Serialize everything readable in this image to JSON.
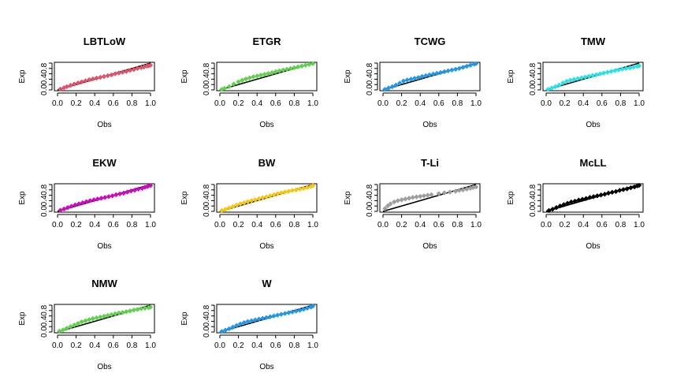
{
  "chart_data": [
    {
      "type": "scatter",
      "title": "LBTLoW",
      "xlabel": "Obs",
      "ylabel": "Exp",
      "xlim": [
        0,
        1
      ],
      "ylim": [
        0,
        1
      ],
      "xticks": [
        "0.0",
        "0.2",
        "0.4",
        "0.6",
        "0.8",
        "1.0"
      ],
      "yticks": [
        "0.0",
        "0.4",
        "0.8"
      ],
      "color": "#DF536B",
      "x": [
        0.03,
        0.07,
        0.1,
        0.14,
        0.18,
        0.22,
        0.26,
        0.3,
        0.34,
        0.38,
        0.42,
        0.46,
        0.5,
        0.54,
        0.58,
        0.62,
        0.66,
        0.7,
        0.74,
        0.78,
        0.82,
        0.86,
        0.9,
        0.93,
        0.96,
        0.98,
        1.0
      ],
      "y": [
        0.03,
        0.08,
        0.12,
        0.17,
        0.22,
        0.26,
        0.3,
        0.34,
        0.38,
        0.41,
        0.44,
        0.47,
        0.5,
        0.53,
        0.56,
        0.6,
        0.63,
        0.66,
        0.69,
        0.73,
        0.76,
        0.8,
        0.83,
        0.86,
        0.89,
        0.9,
        0.92
      ]
    },
    {
      "type": "scatter",
      "title": "ETGR",
      "xlabel": "Obs",
      "ylabel": "Exp",
      "xlim": [
        0,
        1
      ],
      "ylim": [
        0,
        1
      ],
      "xticks": [
        "0.0",
        "0.2",
        "0.4",
        "0.6",
        "0.8",
        "1.0"
      ],
      "yticks": [
        "0.0",
        "0.4",
        "0.8"
      ],
      "color": "#61D04F",
      "x": [
        0.02,
        0.05,
        0.1,
        0.15,
        0.2,
        0.24,
        0.28,
        0.32,
        0.36,
        0.4,
        0.44,
        0.48,
        0.52,
        0.56,
        0.6,
        0.64,
        0.68,
        0.72,
        0.76,
        0.8,
        0.84,
        0.88,
        0.92,
        0.96,
        1.0
      ],
      "y": [
        0.02,
        0.06,
        0.12,
        0.22,
        0.3,
        0.36,
        0.41,
        0.45,
        0.49,
        0.52,
        0.55,
        0.58,
        0.61,
        0.64,
        0.68,
        0.71,
        0.74,
        0.77,
        0.8,
        0.83,
        0.86,
        0.89,
        0.92,
        0.95,
        0.98
      ]
    },
    {
      "type": "scatter",
      "title": "TCWG",
      "xlabel": "Obs",
      "ylabel": "Exp",
      "xlim": [
        0,
        1
      ],
      "ylim": [
        0,
        1
      ],
      "xticks": [
        "0.0",
        "0.2",
        "0.4",
        "0.6",
        "0.8",
        "1.0"
      ],
      "yticks": [
        "0.0",
        "0.4",
        "0.8"
      ],
      "color": "#2297E6",
      "x": [
        0.02,
        0.06,
        0.1,
        0.14,
        0.18,
        0.22,
        0.26,
        0.3,
        0.34,
        0.38,
        0.42,
        0.46,
        0.5,
        0.54,
        0.58,
        0.62,
        0.66,
        0.7,
        0.74,
        0.78,
        0.82,
        0.86,
        0.9,
        0.94,
        0.98,
        1.0
      ],
      "y": [
        0.02,
        0.07,
        0.12,
        0.18,
        0.25,
        0.33,
        0.37,
        0.4,
        0.43,
        0.46,
        0.5,
        0.53,
        0.56,
        0.59,
        0.62,
        0.65,
        0.68,
        0.71,
        0.74,
        0.77,
        0.8,
        0.84,
        0.88,
        0.92,
        0.96,
        0.98
      ]
    },
    {
      "type": "scatter",
      "title": "TMW",
      "xlabel": "Obs",
      "ylabel": "Exp",
      "xlim": [
        0,
        1
      ],
      "ylim": [
        0,
        1
      ],
      "xticks": [
        "0.0",
        "0.2",
        "0.4",
        "0.6",
        "0.8",
        "1.0"
      ],
      "yticks": [
        "0.0",
        "0.4",
        "0.8"
      ],
      "color": "#28E2E5",
      "x": [
        0.02,
        0.06,
        0.1,
        0.14,
        0.18,
        0.22,
        0.26,
        0.3,
        0.34,
        0.38,
        0.42,
        0.46,
        0.5,
        0.54,
        0.58,
        0.62,
        0.66,
        0.7,
        0.74,
        0.78,
        0.82,
        0.86,
        0.9,
        0.94,
        0.98,
        1.0
      ],
      "y": [
        0.02,
        0.07,
        0.12,
        0.18,
        0.26,
        0.32,
        0.36,
        0.39,
        0.42,
        0.45,
        0.48,
        0.51,
        0.54,
        0.57,
        0.6,
        0.63,
        0.66,
        0.69,
        0.72,
        0.75,
        0.78,
        0.8,
        0.82,
        0.85,
        0.88,
        0.9
      ]
    },
    {
      "type": "scatter",
      "title": "EKW",
      "xlabel": "Obs",
      "ylabel": "Exp",
      "xlim": [
        0,
        1
      ],
      "ylim": [
        0,
        1
      ],
      "xticks": [
        "0.0",
        "0.2",
        "0.4",
        "0.6",
        "0.8",
        "1.0"
      ],
      "yticks": [
        "0.0",
        "0.4",
        "0.8"
      ],
      "color": "#CD0BBC",
      "x": [
        0.03,
        0.07,
        0.11,
        0.15,
        0.19,
        0.23,
        0.27,
        0.31,
        0.35,
        0.39,
        0.43,
        0.47,
        0.51,
        0.55,
        0.59,
        0.63,
        0.67,
        0.71,
        0.75,
        0.79,
        0.83,
        0.87,
        0.91,
        0.94,
        0.97,
        1.0
      ],
      "y": [
        0.04,
        0.09,
        0.14,
        0.19,
        0.24,
        0.28,
        0.32,
        0.36,
        0.4,
        0.43,
        0.46,
        0.49,
        0.52,
        0.55,
        0.58,
        0.62,
        0.65,
        0.68,
        0.72,
        0.76,
        0.79,
        0.83,
        0.86,
        0.9,
        0.93,
        0.96
      ]
    },
    {
      "type": "scatter",
      "title": "BW",
      "xlabel": "Obs",
      "ylabel": "Exp",
      "xlim": [
        0,
        1
      ],
      "ylim": [
        0,
        1
      ],
      "xticks": [
        "0.0",
        "0.2",
        "0.4",
        "0.6",
        "0.8",
        "1.0"
      ],
      "yticks": [
        "0.0",
        "0.4",
        "0.8"
      ],
      "color": "#F5C710",
      "x": [
        0.02,
        0.06,
        0.1,
        0.14,
        0.18,
        0.22,
        0.26,
        0.3,
        0.34,
        0.38,
        0.42,
        0.46,
        0.5,
        0.54,
        0.58,
        0.62,
        0.66,
        0.7,
        0.74,
        0.78,
        0.82,
        0.86,
        0.9,
        0.94,
        0.98,
        1.0
      ],
      "y": [
        0.03,
        0.08,
        0.13,
        0.18,
        0.23,
        0.28,
        0.32,
        0.36,
        0.4,
        0.43,
        0.47,
        0.51,
        0.54,
        0.58,
        0.62,
        0.66,
        0.69,
        0.72,
        0.75,
        0.78,
        0.8,
        0.83,
        0.86,
        0.89,
        0.93,
        0.96
      ]
    },
    {
      "type": "scatter",
      "title": "T-Li",
      "xlabel": "Obs",
      "ylabel": "Exp",
      "xlim": [
        0,
        1
      ],
      "ylim": [
        0,
        1
      ],
      "xticks": [
        "0.0",
        "0.2",
        "0.4",
        "0.6",
        "0.8",
        "1.0"
      ],
      "yticks": [
        "0.0",
        "0.4",
        "0.8"
      ],
      "color": "#9E9E9E",
      "x": [
        0.02,
        0.05,
        0.08,
        0.12,
        0.16,
        0.2,
        0.24,
        0.28,
        0.32,
        0.36,
        0.4,
        0.44,
        0.48,
        0.52,
        0.6,
        0.66,
        0.72,
        0.78,
        0.82,
        0.86,
        0.9,
        0.94,
        0.97,
        1.0
      ],
      "y": [
        0.1,
        0.2,
        0.28,
        0.35,
        0.4,
        0.43,
        0.46,
        0.49,
        0.52,
        0.54,
        0.56,
        0.58,
        0.6,
        0.62,
        0.66,
        0.69,
        0.72,
        0.75,
        0.78,
        0.8,
        0.83,
        0.86,
        0.89,
        0.91
      ]
    },
    {
      "type": "scatter",
      "title": "McLL",
      "xlabel": "Obs",
      "ylabel": "Exp",
      "xlim": [
        0,
        1
      ],
      "ylim": [
        0,
        1
      ],
      "xticks": [
        "0.0",
        "0.2",
        "0.4",
        "0.6",
        "0.8",
        "1.0"
      ],
      "yticks": [
        "0.0",
        "0.4",
        "0.8"
      ],
      "color": "#000000",
      "x": [
        0.03,
        0.07,
        0.11,
        0.15,
        0.19,
        0.23,
        0.27,
        0.31,
        0.35,
        0.39,
        0.43,
        0.47,
        0.51,
        0.55,
        0.59,
        0.63,
        0.67,
        0.71,
        0.75,
        0.79,
        0.83,
        0.87,
        0.91,
        0.95,
        0.98,
        1.0
      ],
      "y": [
        0.03,
        0.08,
        0.14,
        0.2,
        0.25,
        0.3,
        0.35,
        0.38,
        0.42,
        0.45,
        0.48,
        0.52,
        0.55,
        0.58,
        0.61,
        0.64,
        0.68,
        0.71,
        0.74,
        0.78,
        0.81,
        0.84,
        0.88,
        0.91,
        0.95,
        0.97
      ]
    },
    {
      "type": "scatter",
      "title": "NMW",
      "xlabel": "Obs",
      "ylabel": "Exp",
      "xlim": [
        0,
        1
      ],
      "ylim": [
        0,
        1
      ],
      "xticks": [
        "0.0",
        "0.2",
        "0.4",
        "0.6",
        "0.8",
        "1.0"
      ],
      "yticks": [
        "0.0",
        "0.4",
        "0.8"
      ],
      "color": "#61D04F",
      "x": [
        0.02,
        0.06,
        0.1,
        0.14,
        0.18,
        0.22,
        0.26,
        0.3,
        0.34,
        0.38,
        0.42,
        0.46,
        0.5,
        0.54,
        0.58,
        0.62,
        0.66,
        0.7,
        0.74,
        0.78,
        0.82,
        0.86,
        0.9,
        0.94,
        0.98,
        1.0
      ],
      "y": [
        0.03,
        0.08,
        0.14,
        0.2,
        0.26,
        0.32,
        0.38,
        0.42,
        0.46,
        0.5,
        0.53,
        0.56,
        0.59,
        0.62,
        0.65,
        0.68,
        0.71,
        0.73,
        0.76,
        0.79,
        0.82,
        0.84,
        0.87,
        0.89,
        0.91,
        0.93
      ]
    },
    {
      "type": "scatter",
      "title": "W",
      "xlabel": "Obs",
      "ylabel": "Exp",
      "xlim": [
        0,
        1
      ],
      "ylim": [
        0,
        1
      ],
      "xticks": [
        "0.0",
        "0.2",
        "0.4",
        "0.6",
        "0.8",
        "1.0"
      ],
      "yticks": [
        "0.0",
        "0.4",
        "0.8"
      ],
      "color": "#2297E6",
      "x": [
        0.02,
        0.06,
        0.1,
        0.14,
        0.18,
        0.22,
        0.26,
        0.3,
        0.34,
        0.38,
        0.42,
        0.46,
        0.5,
        0.54,
        0.58,
        0.62,
        0.66,
        0.7,
        0.74,
        0.78,
        0.82,
        0.86,
        0.9,
        0.94,
        0.98,
        1.0
      ],
      "y": [
        0.02,
        0.07,
        0.12,
        0.18,
        0.24,
        0.3,
        0.35,
        0.39,
        0.42,
        0.45,
        0.48,
        0.51,
        0.54,
        0.57,
        0.6,
        0.63,
        0.66,
        0.69,
        0.72,
        0.75,
        0.78,
        0.81,
        0.85,
        0.89,
        0.93,
        0.97
      ]
    }
  ]
}
